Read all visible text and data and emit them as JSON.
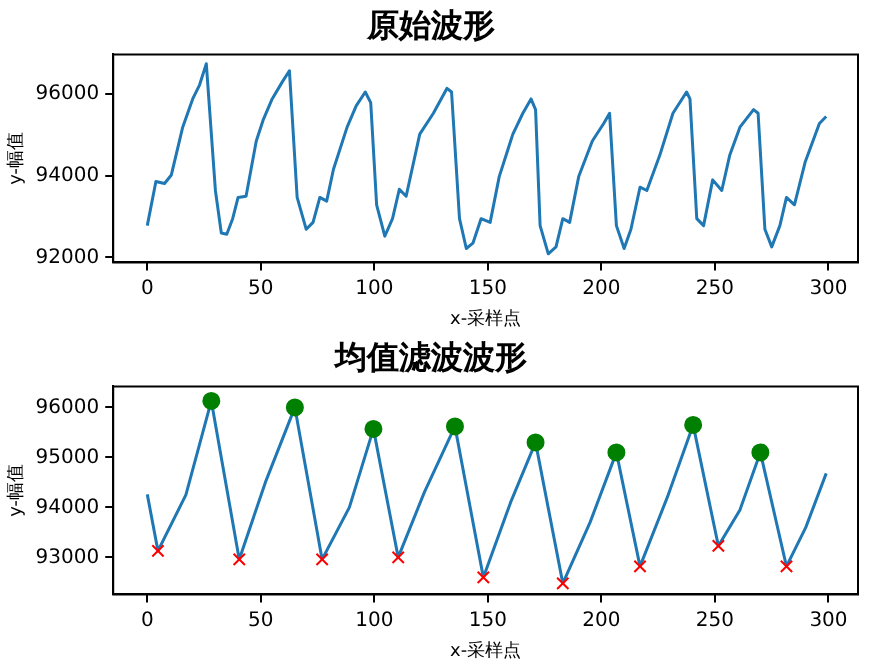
{
  "chart_data": [
    {
      "type": "line",
      "title": "原始波形",
      "xlabel": "x-采样点",
      "ylabel": "y-幅值",
      "xlim": [
        -15,
        313
      ],
      "ylim": [
        91880,
        96970
      ],
      "xticks": [
        0,
        50,
        100,
        150,
        200,
        250,
        300
      ],
      "yticks": [
        92000,
        94000,
        96000
      ],
      "grid": false,
      "legend": false,
      "marker": "none",
      "line_style": "solid",
      "series": [
        {
          "color": "#1f77b4",
          "x": [
            0,
            3.8,
            7.6,
            10.6,
            15.6,
            20,
            23,
            26,
            30,
            32.6,
            35,
            37.6,
            40,
            43.5,
            48,
            51,
            55,
            59.6,
            62.6,
            66,
            70,
            73,
            76,
            79,
            82,
            88,
            92,
            96,
            98.4,
            101,
            104.6,
            108,
            111,
            114,
            120,
            126,
            132,
            134,
            137.5,
            140.5,
            143.4,
            147,
            151,
            155,
            161,
            165.4,
            169,
            171,
            173,
            176.6,
            180,
            183,
            186,
            190,
            196,
            201,
            203.6,
            206.6,
            210,
            213,
            217,
            220,
            225.7,
            231.5,
            237.5,
            239,
            242,
            245,
            249,
            253,
            256.5,
            261,
            267,
            269,
            272,
            275,
            278.6,
            281.5,
            285,
            289.7,
            296,
            299
          ],
          "values": [
            92780,
            93860,
            93810,
            94020,
            95190,
            95880,
            96220,
            96740,
            93640,
            92600,
            92570,
            92950,
            93470,
            93500,
            94850,
            95360,
            95880,
            96310,
            96570,
            93470,
            92690,
            92860,
            93470,
            93380,
            94160,
            95190,
            95710,
            96050,
            95790,
            93290,
            92520,
            92950,
            93670,
            93500,
            95020,
            95530,
            96140,
            96050,
            92950,
            92220,
            92350,
            92950,
            92860,
            93980,
            95020,
            95530,
            95880,
            95620,
            92780,
            92090,
            92260,
            92950,
            92860,
            93980,
            94850,
            95280,
            95530,
            92780,
            92220,
            92690,
            93720,
            93640,
            94500,
            95530,
            96050,
            95880,
            92950,
            92780,
            93900,
            93640,
            94500,
            95190,
            95620,
            95530,
            92690,
            92260,
            92780,
            93470,
            93290,
            94330,
            95280,
            95450
          ]
        }
      ]
    },
    {
      "type": "line",
      "title": "均值滤波波形",
      "xlabel": "x-采样点",
      "ylabel": "y-幅值",
      "xlim": [
        -15,
        313
      ],
      "ylim": [
        92260,
        96420
      ],
      "xticks": [
        0,
        50,
        100,
        150,
        200,
        250,
        300
      ],
      "yticks": [
        93000,
        94000,
        95000,
        96000
      ],
      "grid": false,
      "legend": false,
      "line_style": "solid",
      "series": [
        {
          "type": "line",
          "marker": "none",
          "color": "#1f77b4",
          "x": [
            0,
            4.7,
            17,
            28.2,
            40.5,
            52,
            65,
            77,
            89,
            99.6,
            110.5,
            122,
            135.5,
            148,
            160,
            171,
            183,
            195,
            206.6,
            217,
            229,
            240.4,
            251.5,
            261,
            270,
            281.5,
            290,
            299
          ],
          "values": [
            94260,
            93130,
            94250,
            96130,
            92960,
            94500,
            96000,
            92960,
            94000,
            95570,
            93000,
            94300,
            95620,
            92600,
            94100,
            95300,
            92480,
            93700,
            95100,
            92820,
            94200,
            95650,
            93230,
            93950,
            95100,
            92820,
            93600,
            94680
          ]
        },
        {
          "type": "scatter",
          "marker": "circle",
          "color": "#008000",
          "x": [
            28.2,
            65,
            99.6,
            135.5,
            171,
            206.6,
            240.4,
            270
          ],
          "values": [
            96130,
            96000,
            95570,
            95620,
            95300,
            95100,
            95650,
            95100
          ]
        },
        {
          "type": "scatter",
          "marker": "cross",
          "color": "#ff0000",
          "x": [
            4.7,
            40.5,
            77,
            110.5,
            148,
            183,
            217,
            251.5,
            281.5
          ],
          "values": [
            93130,
            92960,
            92960,
            93000,
            92600,
            92480,
            92820,
            93230,
            92820
          ]
        }
      ]
    }
  ]
}
